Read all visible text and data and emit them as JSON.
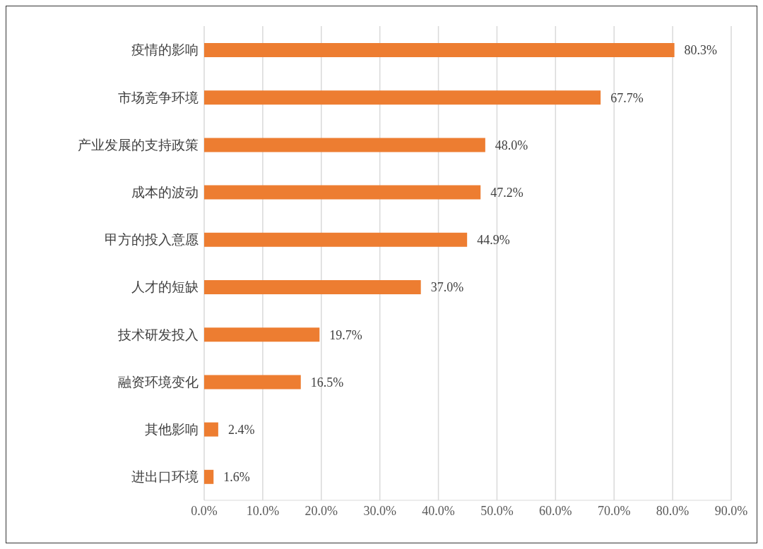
{
  "chart_data": {
    "type": "bar",
    "orientation": "horizontal",
    "categories": [
      "疫情的影响",
      "市场竞争环境",
      "产业发展的支持政策",
      "成本的波动",
      "甲方的投入意愿",
      "人才的短缺",
      "技术研发投入",
      "融资环境变化",
      "其他影响",
      "进出口环境"
    ],
    "values": [
      80.3,
      67.7,
      48.0,
      47.2,
      44.9,
      37.0,
      19.7,
      16.5,
      2.4,
      1.6
    ],
    "value_labels": [
      "80.3%",
      "67.7%",
      "48.0%",
      "47.2%",
      "44.9%",
      "37.0%",
      "19.7%",
      "16.5%",
      "2.4%",
      "1.6%"
    ],
    "color": "#ed7d31",
    "xlim": [
      0,
      90
    ],
    "xticks": [
      {
        "value": 0,
        "label": "0.0%"
      },
      {
        "value": 10,
        "label": "10.0%"
      },
      {
        "value": 20,
        "label": "20.0%"
      },
      {
        "value": 30,
        "label": "30.0%"
      },
      {
        "value": 40,
        "label": "40.0%"
      },
      {
        "value": 50,
        "label": "50.0%"
      },
      {
        "value": 60,
        "label": "60.0%"
      },
      {
        "value": 70,
        "label": "70.0%"
      },
      {
        "value": 80,
        "label": "80.0%"
      },
      {
        "value": 90,
        "label": "90.0%"
      }
    ],
    "grid": "x"
  }
}
